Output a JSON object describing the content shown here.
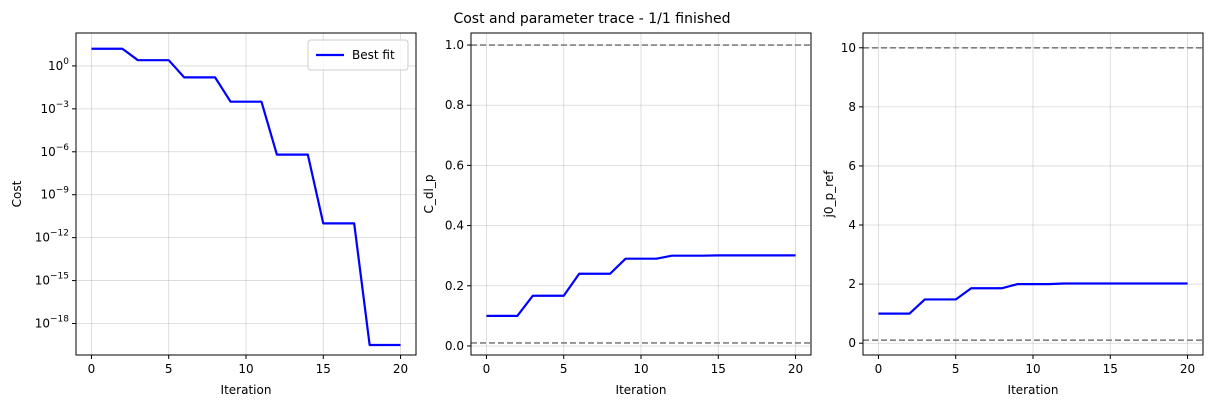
{
  "figure": {
    "title": "Cost and parameter trace - 1/1 finished"
  },
  "chart_data": [
    {
      "type": "line",
      "id": "cost",
      "title": "",
      "xlabel": "Iteration",
      "ylabel": "Cost",
      "yscale": "log",
      "xlim": [
        -1,
        21
      ],
      "ylim_log10": [
        -20.2,
        2.3
      ],
      "xticks": [
        0,
        5,
        10,
        15,
        20
      ],
      "yticks_log10": [
        0,
        -3,
        -6,
        -9,
        -12,
        -15,
        -18
      ],
      "grid": true,
      "legend": {
        "placement": "top-right",
        "entries": [
          "Best fit"
        ]
      },
      "series": [
        {
          "name": "Best fit",
          "color": "#0000ff",
          "x": [
            0,
            1,
            2,
            3,
            4,
            5,
            6,
            7,
            8,
            9,
            10,
            11,
            12,
            13,
            14,
            15,
            16,
            17,
            18,
            19,
            20
          ],
          "y_log10": [
            1.2,
            1.2,
            1.2,
            0.4,
            0.4,
            0.4,
            -0.8,
            -0.8,
            -0.8,
            -2.5,
            -2.5,
            -2.5,
            -6.2,
            -6.2,
            -6.2,
            -11.0,
            -11.0,
            -11.0,
            -19.5,
            -19.5,
            -19.5
          ]
        }
      ],
      "hlines": []
    },
    {
      "type": "line",
      "id": "c_dl_p",
      "title": "",
      "xlabel": "Iteration",
      "ylabel": "C_dl_p",
      "yscale": "linear",
      "xlim": [
        -1,
        21
      ],
      "ylim": [
        -0.03,
        1.04
      ],
      "xticks": [
        0,
        5,
        10,
        15,
        20
      ],
      "yticks": [
        0.0,
        0.2,
        0.4,
        0.6,
        0.8,
        1.0
      ],
      "ytick_labels": [
        "0.0",
        "0.2",
        "0.4",
        "0.6",
        "0.8",
        "1.0"
      ],
      "grid": true,
      "series": [
        {
          "color": "#0000ff",
          "x": [
            0,
            1,
            2,
            3,
            4,
            5,
            6,
            7,
            8,
            9,
            10,
            11,
            12,
            13,
            14,
            15,
            16,
            17,
            18,
            19,
            20
          ],
          "y": [
            0.1,
            0.1,
            0.1,
            0.167,
            0.167,
            0.167,
            0.24,
            0.24,
            0.24,
            0.29,
            0.29,
            0.29,
            0.3,
            0.3,
            0.3,
            0.301,
            0.301,
            0.301,
            0.301,
            0.301,
            0.301
          ]
        }
      ],
      "hlines": [
        {
          "y": 1.0,
          "color": "#808080",
          "style": "dashed"
        },
        {
          "y": 0.01,
          "color": "#808080",
          "style": "dashed"
        }
      ]
    },
    {
      "type": "line",
      "id": "j0_p_ref",
      "title": "",
      "xlabel": "Iteration",
      "ylabel": "j0_p_ref",
      "yscale": "linear",
      "xlim": [
        -1,
        21
      ],
      "ylim": [
        -0.4,
        10.5
      ],
      "xticks": [
        0,
        5,
        10,
        15,
        20
      ],
      "yticks": [
        0,
        2,
        4,
        6,
        8,
        10
      ],
      "ytick_labels": [
        "0",
        "2",
        "4",
        "6",
        "8",
        "10"
      ],
      "grid": true,
      "series": [
        {
          "color": "#0000ff",
          "x": [
            0,
            1,
            2,
            3,
            4,
            5,
            6,
            7,
            8,
            9,
            10,
            11,
            12,
            13,
            14,
            15,
            16,
            17,
            18,
            19,
            20
          ],
          "y": [
            1.0,
            1.0,
            1.0,
            1.48,
            1.48,
            1.48,
            1.86,
            1.86,
            1.86,
            2.0,
            2.0,
            2.0,
            2.02,
            2.02,
            2.02,
            2.02,
            2.02,
            2.02,
            2.02,
            2.02,
            2.02
          ]
        }
      ],
      "hlines": [
        {
          "y": 10.0,
          "color": "#808080",
          "style": "dashed"
        },
        {
          "y": 0.1,
          "color": "#808080",
          "style": "dashed"
        }
      ]
    }
  ]
}
